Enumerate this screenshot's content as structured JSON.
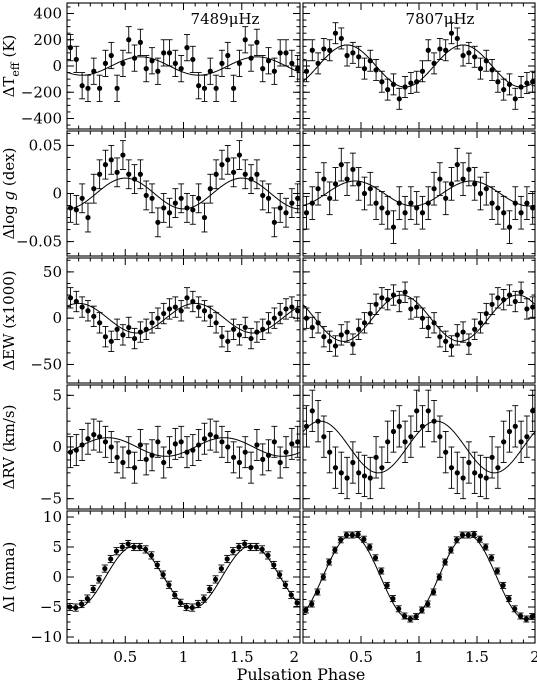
{
  "chart_data": {
    "type": "scatter",
    "xlabel": "Pulsation Phase",
    "xlim": [
      0,
      2
    ],
    "xticks": [
      "0.5",
      "1",
      "1.5",
      "2"
    ],
    "columns": [
      "7489μHz",
      "7807μHz"
    ],
    "rows": [
      {
        "key": "teff",
        "ylabel": "ΔTeff (K)",
        "ylim": [
          -480,
          480
        ],
        "yticks": [
          "400",
          "200",
          "0",
          "−200",
          "−400"
        ],
        "ytick_values": [
          400,
          200,
          0,
          -200,
          -400
        ],
        "amplitude": [
          70,
          160
        ],
        "peak_phase": [
          0.63,
          0.38
        ],
        "error": [
          100,
          80
        ],
        "series": [
          {
            "name": "",
            "x": [
              0.03,
              0.08,
              0.13,
              0.18,
              0.23,
              0.28,
              0.33,
              0.38,
              0.43,
              0.48,
              0.53,
              0.58,
              0.63,
              0.68,
              0.73,
              0.78,
              0.83,
              0.88,
              0.93,
              0.98,
              1.03,
              1.08,
              1.13,
              1.18,
              1.23,
              1.28,
              1.33,
              1.38,
              1.43,
              1.48,
              1.53,
              1.58,
              1.63,
              1.68,
              1.73,
              1.78,
              1.83,
              1.88,
              1.93,
              1.98
            ],
            "y": [
              140,
              50,
              -150,
              -170,
              -40,
              -170,
              20,
              80,
              -170,
              20,
              200,
              60,
              180,
              -20,
              40,
              -40,
              100,
              100,
              20,
              -20,
              140,
              50,
              -150,
              -170,
              -40,
              -170,
              20,
              80,
              -170,
              20,
              200,
              60,
              180,
              -20,
              40,
              -40,
              100,
              100,
              20,
              -20
            ]
          },
          {
            "name": "",
            "x": [
              0.03,
              0.08,
              0.13,
              0.18,
              0.23,
              0.28,
              0.33,
              0.38,
              0.43,
              0.48,
              0.53,
              0.58,
              0.63,
              0.68,
              0.73,
              0.78,
              0.83,
              0.88,
              0.93,
              0.98,
              1.03,
              1.08,
              1.13,
              1.18,
              1.23,
              1.28,
              1.33,
              1.38,
              1.43,
              1.48,
              1.53,
              1.58,
              1.63,
              1.68,
              1.73,
              1.78,
              1.83,
              1.88,
              1.93,
              1.98
            ],
            "y": [
              -40,
              120,
              20,
              130,
              120,
              250,
              210,
              80,
              100,
              70,
              -20,
              40,
              -30,
              -120,
              -180,
              -140,
              -250,
              -160,
              -130,
              -120,
              -40,
              120,
              20,
              130,
              120,
              250,
              210,
              80,
              100,
              70,
              -20,
              40,
              -30,
              -120,
              -180,
              -140,
              -250,
              -160,
              -130,
              -120
            ]
          }
        ]
      },
      {
        "key": "logg",
        "ylabel": "Δlog g (dex)",
        "ylim": [
          -0.065,
          0.065
        ],
        "yticks": [
          "0.05",
          "0",
          "−0.05"
        ],
        "ytick_values": [
          0.05,
          0,
          -0.05
        ],
        "amplitude": [
          0.016,
          0.013
        ],
        "peak_phase": [
          0.5,
          0.45
        ],
        "error": [
          0.015,
          0.017
        ],
        "series": [
          {
            "name": "",
            "x": [
              0.03,
              0.08,
              0.13,
              0.18,
              0.23,
              0.28,
              0.33,
              0.38,
              0.43,
              0.48,
              0.53,
              0.58,
              0.63,
              0.68,
              0.73,
              0.78,
              0.83,
              0.88,
              0.93,
              0.98,
              1.03,
              1.08,
              1.13,
              1.18,
              1.23,
              1.28,
              1.33,
              1.38,
              1.43,
              1.48,
              1.53,
              1.58,
              1.63,
              1.68,
              1.73,
              1.78,
              1.83,
              1.88,
              1.93,
              1.98
            ],
            "y": [
              -0.015,
              -0.017,
              -0.005,
              -0.025,
              0.005,
              0.02,
              0.03,
              0.035,
              0.022,
              0.04,
              0.02,
              0.015,
              0.02,
              -0.002,
              -0.005,
              -0.03,
              -0.015,
              -0.02,
              -0.01,
              -0.005,
              -0.015,
              -0.017,
              -0.005,
              -0.025,
              0.005,
              0.02,
              0.03,
              0.035,
              0.022,
              0.04,
              0.02,
              0.015,
              0.02,
              -0.002,
              -0.005,
              -0.03,
              -0.015,
              -0.02,
              -0.01,
              -0.005
            ]
          },
          {
            "name": "",
            "x": [
              0.03,
              0.08,
              0.13,
              0.18,
              0.23,
              0.28,
              0.33,
              0.38,
              0.43,
              0.48,
              0.53,
              0.58,
              0.63,
              0.68,
              0.73,
              0.78,
              0.83,
              0.88,
              0.93,
              0.98,
              1.03,
              1.08,
              1.13,
              1.18,
              1.23,
              1.28,
              1.33,
              1.38,
              1.43,
              1.48,
              1.53,
              1.58,
              1.63,
              1.68,
              1.73,
              1.78,
              1.83,
              1.88,
              1.93,
              1.98
            ],
            "y": [
              -0.02,
              -0.01,
              0.005,
              0.015,
              -0.005,
              0.01,
              0.03,
              0.015,
              0.025,
              0.01,
              0.0,
              0.005,
              -0.01,
              -0.015,
              -0.02,
              -0.035,
              -0.01,
              -0.02,
              -0.01,
              -0.015,
              -0.02,
              -0.01,
              0.005,
              0.015,
              -0.005,
              0.01,
              0.03,
              0.015,
              0.025,
              0.01,
              0.0,
              0.005,
              -0.01,
              -0.015,
              -0.02,
              -0.035,
              -0.01,
              -0.02,
              -0.01,
              -0.015
            ]
          }
        ]
      },
      {
        "key": "ew",
        "ylabel": "ΔEW (x1000)",
        "ylim": [
          -70,
          65
        ],
        "yticks": [
          "50",
          "0",
          "−50"
        ],
        "ytick_values": [
          50,
          0,
          -50
        ],
        "amplitude": [
          16,
          25
        ],
        "peak_phase": [
          0.1,
          0.85
        ],
        "error": [
          11,
          11
        ],
        "series": [
          {
            "name": "",
            "x": [
              0.03,
              0.08,
              0.13,
              0.18,
              0.23,
              0.28,
              0.33,
              0.38,
              0.43,
              0.48,
              0.53,
              0.58,
              0.63,
              0.68,
              0.73,
              0.78,
              0.83,
              0.88,
              0.93,
              0.98,
              1.03,
              1.08,
              1.13,
              1.18,
              1.23,
              1.28,
              1.33,
              1.38,
              1.43,
              1.48,
              1.53,
              1.58,
              1.63,
              1.68,
              1.73,
              1.78,
              1.83,
              1.88,
              1.93,
              1.98
            ],
            "y": [
              22,
              18,
              12,
              8,
              2,
              -5,
              -20,
              -25,
              -12,
              -18,
              -10,
              -22,
              -15,
              -12,
              -5,
              0,
              5,
              10,
              12,
              8,
              22,
              18,
              12,
              8,
              2,
              -5,
              -20,
              -25,
              -12,
              -18,
              -10,
              -22,
              -15,
              -12,
              -5,
              0,
              5,
              10,
              12,
              8
            ]
          },
          {
            "name": "",
            "x": [
              0.03,
              0.08,
              0.13,
              0.18,
              0.23,
              0.28,
              0.33,
              0.38,
              0.43,
              0.48,
              0.53,
              0.58,
              0.63,
              0.68,
              0.73,
              0.78,
              0.83,
              0.88,
              0.93,
              0.98,
              1.03,
              1.08,
              1.13,
              1.18,
              1.23,
              1.28,
              1.33,
              1.38,
              1.43,
              1.48,
              1.53,
              1.58,
              1.63,
              1.68,
              1.73,
              1.78,
              1.83,
              1.88,
              1.93,
              1.98
            ],
            "y": [
              0,
              -10,
              -5,
              -20,
              -25,
              -30,
              -18,
              -15,
              -28,
              -12,
              -5,
              5,
              15,
              22,
              20,
              25,
              18,
              28,
              10,
              12,
              0,
              -10,
              -5,
              -20,
              -25,
              -30,
              -18,
              -15,
              -28,
              -12,
              -5,
              5,
              15,
              22,
              20,
              25,
              18,
              28,
              10,
              12
            ]
          }
        ]
      },
      {
        "key": "rv",
        "ylabel": "ΔRV (km/s)",
        "ylim": [
          -6,
          6
        ],
        "yticks": [
          "5",
          "0",
          "−5"
        ],
        "ytick_values": [
          5,
          0,
          -5
        ],
        "amplitude": [
          0.9,
          2.5
        ],
        "peak_phase": [
          0.35,
          0.15
        ],
        "error": [
          1.5,
          2.0
        ],
        "series": [
          {
            "name": "",
            "x": [
              0.03,
              0.08,
              0.13,
              0.18,
              0.23,
              0.28,
              0.33,
              0.38,
              0.43,
              0.48,
              0.53,
              0.58,
              0.63,
              0.68,
              0.73,
              0.78,
              0.83,
              0.88,
              0.93,
              0.98,
              1.03,
              1.08,
              1.13,
              1.18,
              1.23,
              1.28,
              1.33,
              1.38,
              1.43,
              1.48,
              1.53,
              1.58,
              1.63,
              1.68,
              1.73,
              1.78,
              1.83,
              1.88,
              1.93,
              1.98
            ],
            "y": [
              -0.5,
              -0.3,
              0.2,
              0.8,
              1.2,
              1.0,
              0.5,
              0.0,
              -1.0,
              -1.5,
              -0.5,
              -2.0,
              0.2,
              -1.2,
              -0.8,
              0.5,
              -1.5,
              -0.5,
              0.3,
              0.5,
              -0.5,
              -0.3,
              0.2,
              0.8,
              1.2,
              1.0,
              0.5,
              0.0,
              -1.0,
              -1.5,
              -0.5,
              -2.0,
              0.2,
              -1.2,
              -0.8,
              0.5,
              -1.5,
              -0.5,
              0.3,
              0.5
            ]
          },
          {
            "name": "",
            "x": [
              0.03,
              0.08,
              0.13,
              0.18,
              0.23,
              0.28,
              0.33,
              0.38,
              0.43,
              0.48,
              0.53,
              0.58,
              0.63,
              0.68,
              0.73,
              0.78,
              0.83,
              0.88,
              0.93,
              0.98,
              1.03,
              1.08,
              1.13,
              1.18,
              1.23,
              1.28,
              1.33,
              1.38,
              1.43,
              1.48,
              1.53,
              1.58,
              1.63,
              1.68,
              1.73,
              1.78,
              1.83,
              1.88,
              1.93,
              1.98
            ],
            "y": [
              2.0,
              3.5,
              2.5,
              1.0,
              -0.5,
              -2.0,
              -2.5,
              -3.0,
              -1.5,
              -2.5,
              -2.8,
              -3.0,
              -1.0,
              -2.0,
              0.5,
              1.5,
              2.0,
              0.5,
              1.0,
              3.5,
              2.0,
              3.5,
              2.5,
              1.0,
              -0.5,
              -2.0,
              -2.5,
              -3.0,
              -1.5,
              -2.5,
              -2.8,
              -3.0,
              -1.0,
              -2.0,
              0.5,
              1.5,
              2.0,
              0.5,
              1.0,
              3.5
            ]
          }
        ]
      },
      {
        "key": "int",
        "ylabel": "ΔI (mma)",
        "ylim": [
          -11,
          11
        ],
        "yticks": [
          "10",
          "5",
          "0",
          "−5",
          "−10"
        ],
        "ytick_values": [
          10,
          5,
          0,
          -5,
          -10
        ],
        "amplitude": [
          5.2,
          7.0
        ],
        "peak_phase": [
          0.58,
          0.42
        ],
        "error": [
          0.6,
          0.5
        ],
        "series": [
          {
            "name": "",
            "x": [
              0.025,
              0.075,
              0.125,
              0.175,
              0.225,
              0.275,
              0.325,
              0.375,
              0.425,
              0.475,
              0.525,
              0.575,
              0.625,
              0.675,
              0.725,
              0.775,
              0.825,
              0.875,
              0.925,
              0.975,
              1.025,
              1.075,
              1.125,
              1.175,
              1.225,
              1.275,
              1.325,
              1.375,
              1.425,
              1.475,
              1.525,
              1.575,
              1.625,
              1.675,
              1.725,
              1.775,
              1.825,
              1.875,
              1.925,
              1.975
            ],
            "y": [
              -5.0,
              -5.1,
              -4.5,
              -3.6,
              -2.0,
              -0.4,
              1.4,
              3.0,
              4.3,
              5.0,
              5.5,
              5.0,
              5.0,
              4.6,
              3.6,
              2.0,
              0.4,
              -1.3,
              -3.0,
              -4.3,
              -5.0,
              -5.1,
              -4.5,
              -3.6,
              -2.0,
              -0.4,
              1.4,
              3.0,
              4.3,
              5.0,
              5.5,
              5.0,
              5.0,
              4.6,
              3.6,
              2.0,
              0.4,
              -1.3,
              -3.0,
              -4.3
            ]
          },
          {
            "name": "",
            "x": [
              0.025,
              0.075,
              0.125,
              0.175,
              0.225,
              0.275,
              0.325,
              0.375,
              0.425,
              0.475,
              0.525,
              0.575,
              0.625,
              0.675,
              0.725,
              0.775,
              0.825,
              0.875,
              0.925,
              0.975,
              1.025,
              1.075,
              1.125,
              1.175,
              1.225,
              1.275,
              1.325,
              1.375,
              1.425,
              1.475,
              1.525,
              1.575,
              1.625,
              1.675,
              1.725,
              1.775,
              1.825,
              1.875,
              1.925,
              1.975
            ],
            "y": [
              -5.5,
              -4.5,
              -2.5,
              0.0,
              2.5,
              4.5,
              6.2,
              7.0,
              7.0,
              7.1,
              6.3,
              5.0,
              3.2,
              1.0,
              -1.4,
              -3.6,
              -5.3,
              -6.5,
              -7.0,
              -6.6,
              -5.5,
              -4.5,
              -2.5,
              0.0,
              2.5,
              4.5,
              6.2,
              7.0,
              7.0,
              7.1,
              6.3,
              5.0,
              3.2,
              1.0,
              -1.4,
              -3.6,
              -5.3,
              -6.5,
              -7.0,
              -6.6
            ]
          }
        ]
      }
    ]
  }
}
